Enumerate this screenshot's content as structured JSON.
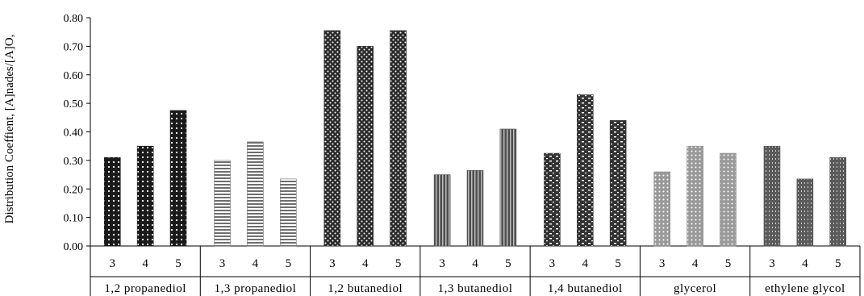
{
  "chart_data": {
    "type": "bar",
    "title": "",
    "xlabel": "",
    "ylabel": "Distribution Coeffient, [A]nades/[A]O,",
    "ylim": [
      0,
      0.8
    ],
    "yticks": [
      "0.00",
      "0.10",
      "0.20",
      "0.30",
      "0.40",
      "0.50",
      "0.60",
      "0.70",
      "0.80"
    ],
    "grid": false,
    "legend": "none",
    "groups": [
      {
        "name": "1,2 propanediol",
        "subcategories": [
          "3",
          "4",
          "5"
        ],
        "values": [
          0.31,
          0.35,
          0.475
        ],
        "color": "#1a1a1a"
      },
      {
        "name": "1,3 propanediol",
        "subcategories": [
          "3",
          "4",
          "5"
        ],
        "values": [
          0.3,
          0.365,
          0.235
        ],
        "color": "#7a7a7a"
      },
      {
        "name": "1,2 butanediol",
        "subcategories": [
          "3",
          "4",
          "5"
        ],
        "values": [
          0.755,
          0.7,
          0.755
        ],
        "color": "#2a2a2a"
      },
      {
        "name": "1,3 butanediol",
        "subcategories": [
          "3",
          "4",
          "5"
        ],
        "values": [
          0.25,
          0.265,
          0.41
        ],
        "color": "#555555"
      },
      {
        "name": "1,4 butanediol",
        "subcategories": [
          "3",
          "4",
          "5"
        ],
        "values": [
          0.325,
          0.53,
          0.44
        ],
        "color": "#3a3a3a"
      },
      {
        "name": "glycerol",
        "subcategories": [
          "3",
          "4",
          "5"
        ],
        "values": [
          0.26,
          0.35,
          0.325
        ],
        "color": "#8a8a8a"
      },
      {
        "name": "ethylene glycol",
        "subcategories": [
          "3",
          "4",
          "5"
        ],
        "values": [
          0.35,
          0.235,
          0.31
        ],
        "color": "#555555"
      }
    ]
  }
}
